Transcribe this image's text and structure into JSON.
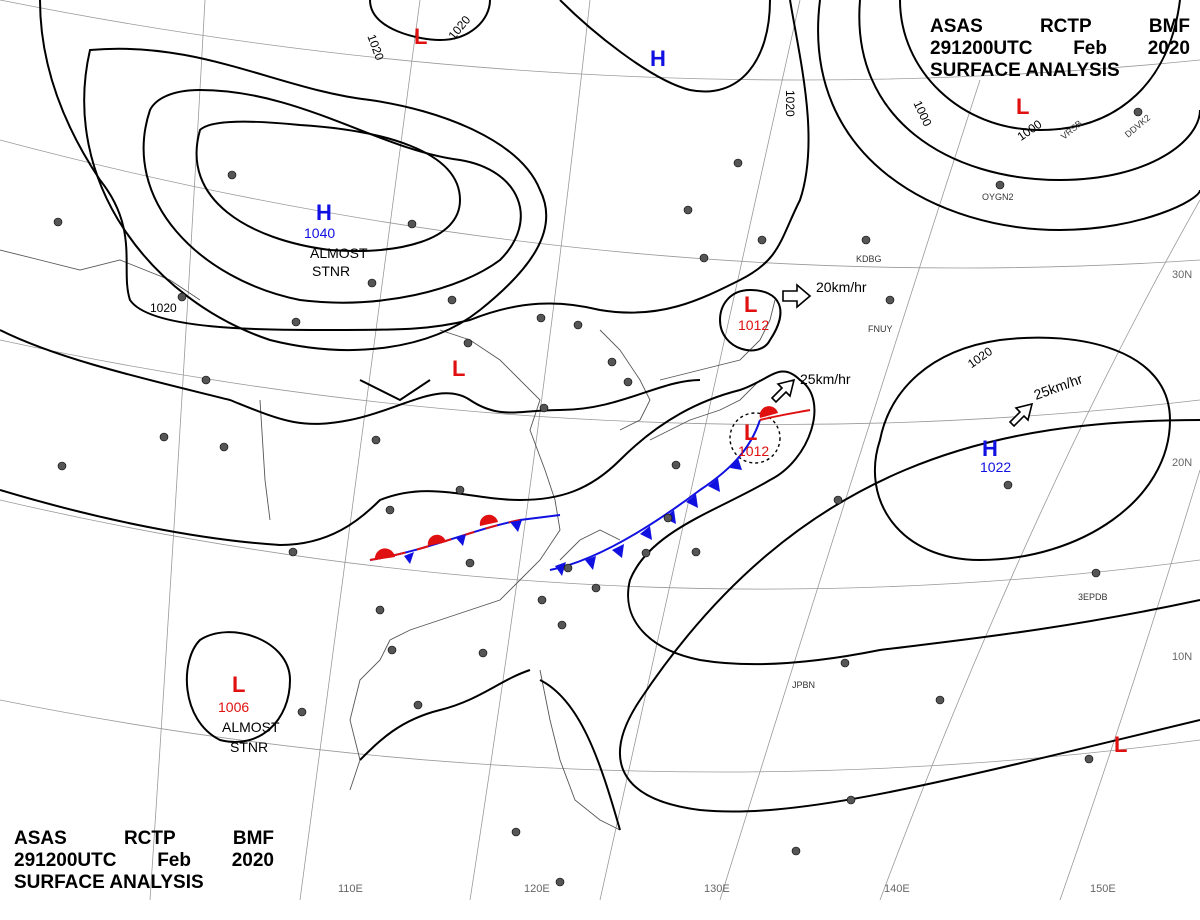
{
  "header": {
    "line1": [
      "ASAS",
      "RCTP",
      "BMF"
    ],
    "line2": [
      "291200UTC",
      "Feb",
      "2020"
    ],
    "line3": "SURFACE ANALYSIS"
  },
  "colors": {
    "high": "#1010e0",
    "low": "#e01010",
    "isobar": "#000000",
    "grid": "#888888",
    "coast": "#555555"
  },
  "lat_labels": [
    "30N",
    "20N",
    "10N"
  ],
  "lon_labels": [
    "110E",
    "120E",
    "130E",
    "140E",
    "150E"
  ],
  "isobar_label": "1020",
  "isobar_labels_extra": [
    "1000",
    "1000"
  ],
  "pressure_centers": [
    {
      "type": "H",
      "value": "1040",
      "note": [
        "ALMOST",
        "STNR"
      ]
    },
    {
      "type": "H",
      "value": "",
      "note": []
    },
    {
      "type": "H",
      "value": "1022",
      "note": []
    },
    {
      "type": "L",
      "value": "1006",
      "note": [
        "ALMOST",
        "STNR"
      ]
    },
    {
      "type": "L",
      "value": "1012",
      "note": []
    },
    {
      "type": "L",
      "value": "1012",
      "note": []
    },
    {
      "type": "L",
      "value": "",
      "note": []
    },
    {
      "type": "L",
      "value": "",
      "note": []
    },
    {
      "type": "L",
      "value": "",
      "note": []
    },
    {
      "type": "L",
      "value": "",
      "note": []
    }
  ],
  "motions": [
    "20km/hr",
    "25km/hr",
    "25km/hr"
  ],
  "station_labels": [
    "JPBN",
    "3EPDB",
    "FNUY",
    "KDBG",
    "OYGN2",
    "DDVK2",
    "VRSB"
  ]
}
